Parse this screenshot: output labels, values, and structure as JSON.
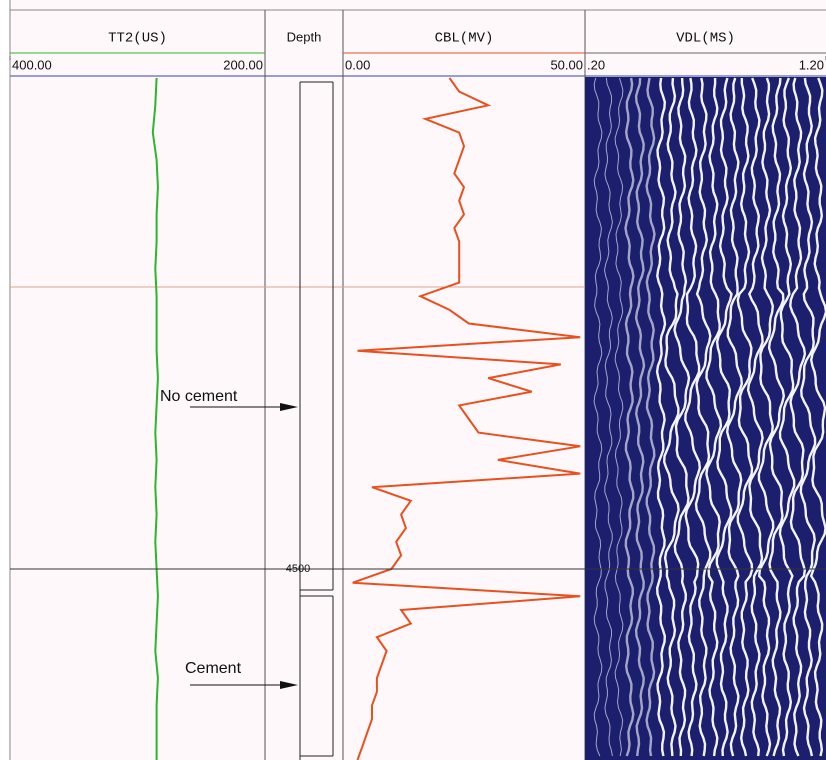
{
  "chart_data": [
    {
      "type": "line",
      "title": "TT2(US)",
      "xlim": [
        400,
        200
      ],
      "xticks": [
        {
          "value": 400,
          "label": "400.00"
        },
        {
          "value": 200,
          "label": "200.00"
        }
      ],
      "ylim": [
        4482,
        4507
      ],
      "color": "#2db52d",
      "y": [
        4482,
        4483,
        4484,
        4485,
        4486,
        4487,
        4488,
        4489,
        4490,
        4491,
        4492,
        4493,
        4494,
        4495,
        4496,
        4497,
        4498,
        4499,
        4500,
        4501,
        4502,
        4503,
        4504,
        4505,
        4506,
        4507
      ],
      "values": [
        285,
        286,
        288,
        285,
        284,
        285,
        285,
        286,
        285,
        285,
        285,
        284,
        285,
        286,
        285,
        286,
        285,
        286,
        285,
        284,
        285,
        286,
        284,
        285,
        285,
        285
      ]
    },
    {
      "type": "line",
      "title": "CBL(MV)",
      "xlim": [
        0,
        50
      ],
      "xticks": [
        {
          "value": 0,
          "label": "0.00"
        },
        {
          "value": 50,
          "label": "50.00"
        }
      ],
      "ylim": [
        4482,
        4507
      ],
      "color": "#e8501e",
      "y": [
        4482,
        4482.5,
        4483,
        4483.5,
        4484,
        4484.5,
        4485,
        4485.5,
        4486,
        4486.5,
        4487,
        4487.5,
        4488,
        4488.5,
        4489,
        4489.5,
        4490,
        4490.5,
        4491,
        4491.5,
        4492,
        4492.5,
        4493,
        4493.5,
        4494,
        4494.5,
        4495,
        4495.5,
        4496,
        4496.5,
        4497,
        4497.5,
        4498,
        4498.5,
        4499,
        4499.5,
        4500,
        4500.5,
        4501,
        4501.5,
        4502,
        4502.5,
        4503,
        4503.5,
        4504,
        4504.5,
        4505,
        4505.5,
        4506,
        4506.5,
        4507
      ],
      "values": [
        22,
        24,
        30,
        17,
        24,
        25,
        24,
        23,
        25,
        24,
        25,
        23,
        24,
        24,
        24,
        24,
        16,
        22,
        26,
        49,
        3,
        45,
        30,
        39,
        24,
        26,
        28,
        49,
        32,
        49,
        6,
        14,
        12,
        13,
        11,
        12,
        10,
        2,
        49,
        12,
        14,
        7,
        9,
        8,
        7,
        7,
        6,
        6,
        5,
        4,
        3
      ]
    },
    {
      "type": "vdl",
      "title": "VDL(MS)",
      "xlim": [
        0.2,
        1.2
      ],
      "xticks": [
        {
          "value": 0.2,
          "label": ".20"
        },
        {
          "value": 1.2,
          "label": "1.20"
        }
      ]
    },
    {
      "type": "depth",
      "title": "Depth",
      "ylim": [
        4482,
        4507
      ],
      "yticks": [
        4500
      ],
      "annotations": [
        "No cement",
        "Cement"
      ]
    }
  ]
}
